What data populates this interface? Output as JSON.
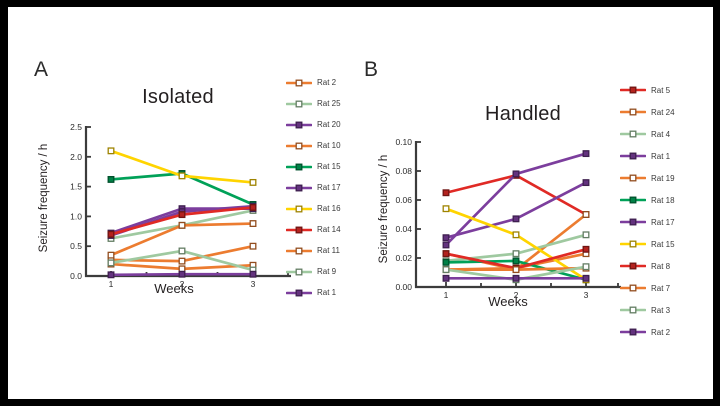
{
  "figure": {
    "background": "#000000",
    "canvas_color": "#ffffff",
    "axis_color": "#3b3b3b",
    "text_color": "#2b2b2b"
  },
  "chart_data": [
    {
      "type": "line",
      "panel_label": "A",
      "title": "Isolated",
      "xlabel": "Weeks",
      "ylabel": "Seizure frequency / h",
      "x": [
        1,
        2,
        3
      ],
      "xtick_labels": [
        "1",
        "2",
        "3"
      ],
      "ylim": [
        0,
        2.5
      ],
      "yticks": [
        0.0,
        0.5,
        1.0,
        1.5,
        2.0,
        2.5
      ],
      "ytick_labels": [
        "0.0",
        "0.5",
        "1.0",
        "1.5",
        "2.0",
        "2.5"
      ],
      "grid": false,
      "legend_position": "right",
      "series": [
        {
          "name": "Rat 2",
          "color": "#EC7C30",
          "marker": "open",
          "values": [
            0.27,
            0.25,
            0.5
          ]
        },
        {
          "name": "Rat 25",
          "color": "#9FC9A0",
          "marker": "open",
          "values": [
            0.63,
            0.85,
            1.1
          ]
        },
        {
          "name": "Rat 20",
          "color": "#7C3E9D",
          "marker": "filled",
          "values": [
            0.72,
            1.13,
            1.13
          ]
        },
        {
          "name": "Rat 10",
          "color": "#EC7C30",
          "marker": "open",
          "values": [
            0.35,
            0.85,
            0.88
          ]
        },
        {
          "name": "Rat 15",
          "color": "#00A158",
          "marker": "filled",
          "values": [
            1.62,
            1.72,
            1.2
          ]
        },
        {
          "name": "Rat 17",
          "color": "#7C3E9D",
          "marker": "filled",
          "values": [
            0.68,
            1.08,
            1.17
          ]
        },
        {
          "name": "Rat 16",
          "color": "#FFD400",
          "marker": "open",
          "values": [
            2.1,
            1.68,
            1.57
          ]
        },
        {
          "name": "Rat 14",
          "color": "#E02A25",
          "marker": "filled",
          "values": [
            0.7,
            1.03,
            1.15
          ]
        },
        {
          "name": "Rat 11",
          "color": "#EC7C30",
          "marker": "open",
          "values": [
            0.2,
            0.12,
            0.18
          ]
        },
        {
          "name": "Rat 9",
          "color": "#9FC9A0",
          "marker": "open",
          "values": [
            0.22,
            0.42,
            0.1
          ]
        },
        {
          "name": "Rat 1",
          "color": "#7C3E9D",
          "marker": "filled",
          "values": [
            0.02,
            0.03,
            0.03
          ]
        }
      ]
    },
    {
      "type": "line",
      "panel_label": "B",
      "title": "Handled",
      "xlabel": "Weeks",
      "ylabel": "Seizure frequency / h",
      "x": [
        1,
        2,
        3
      ],
      "xtick_labels": [
        "1",
        "2",
        "3"
      ],
      "ylim": [
        0,
        0.1
      ],
      "yticks": [
        0.0,
        0.02,
        0.04,
        0.06,
        0.08,
        0.1
      ],
      "ytick_labels": [
        "0.00",
        "0.02",
        "0.04",
        "0.06",
        "0.08",
        "0.10"
      ],
      "grid": false,
      "legend_position": "right",
      "series": [
        {
          "name": "Rat 5",
          "color": "#E02A25",
          "marker": "filled",
          "values": [
            0.065,
            0.077,
            0.05
          ]
        },
        {
          "name": "Rat 24",
          "color": "#EC7C30",
          "marker": "open",
          "values": [
            0.023,
            0.012,
            0.05
          ]
        },
        {
          "name": "Rat 4",
          "color": "#9FC9A0",
          "marker": "open",
          "values": [
            0.018,
            0.023,
            0.036
          ]
        },
        {
          "name": "Rat 1",
          "color": "#7C3E9D",
          "marker": "filled",
          "values": [
            0.034,
            0.047,
            0.072
          ]
        },
        {
          "name": "Rat 19",
          "color": "#EC7C30",
          "marker": "open",
          "values": [
            0.012,
            0.013,
            0.023
          ]
        },
        {
          "name": "Rat 18",
          "color": "#00A158",
          "marker": "filled",
          "values": [
            0.017,
            0.018,
            0.005
          ]
        },
        {
          "name": "Rat 17",
          "color": "#7C3E9D",
          "marker": "filled",
          "values": [
            0.029,
            0.078,
            0.092
          ]
        },
        {
          "name": "Rat 15",
          "color": "#FFD400",
          "marker": "open",
          "values": [
            0.054,
            0.036,
            0.005
          ]
        },
        {
          "name": "Rat 8",
          "color": "#E02A25",
          "marker": "filled",
          "values": [
            0.023,
            0.013,
            0.026
          ]
        },
        {
          "name": "Rat 7",
          "color": "#EC7C30",
          "marker": "open",
          "values": [
            0.012,
            0.012,
            0.013
          ]
        },
        {
          "name": "Rat 3",
          "color": "#9FC9A0",
          "marker": "open",
          "values": [
            0.012,
            0.005,
            0.014
          ]
        },
        {
          "name": "Rat 2",
          "color": "#7C3E9D",
          "marker": "filled",
          "values": [
            0.006,
            0.006,
            0.006
          ]
        }
      ]
    }
  ]
}
